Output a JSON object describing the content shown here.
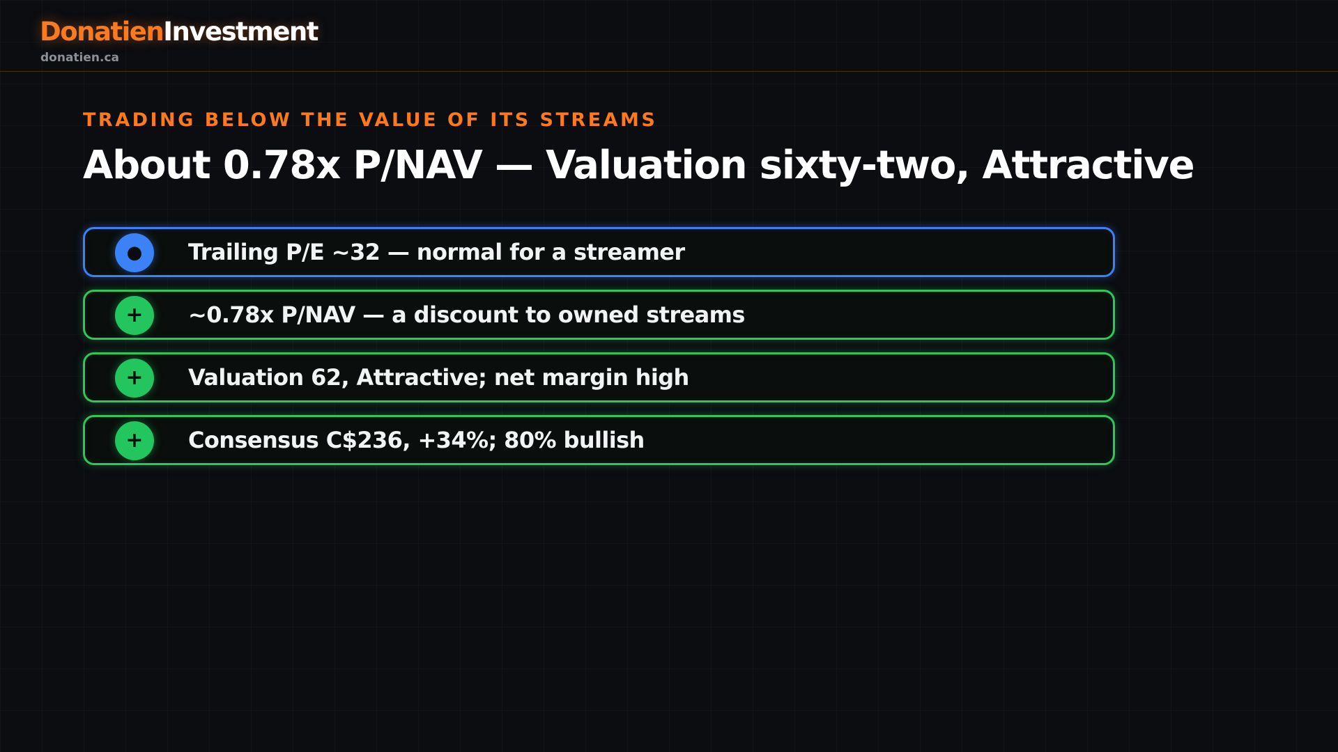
{
  "brand": {
    "name_first": "Donatien",
    "name_second": "Investment",
    "domain": "donatien.ca"
  },
  "colors": {
    "accent": "#f97a1f",
    "positive": "#22c55e",
    "neutral": "#3b82f6",
    "background": "#0b0d11"
  },
  "slide": {
    "kicker": "TRADING BELOW THE VALUE OF ITS STREAMS",
    "title": "About 0.78x P/NAV — Valuation sixty-two, Attractive",
    "points": [
      {
        "type": "neutral",
        "symbol": "●",
        "icon": "dot-icon",
        "text": "Trailing P/E ~32 — normal for a streamer"
      },
      {
        "type": "positive",
        "symbol": "+",
        "icon": "plus-icon",
        "text": "~0.78x P/NAV — a discount to owned streams"
      },
      {
        "type": "positive",
        "symbol": "+",
        "icon": "plus-icon",
        "text": "Valuation 62, Attractive; net margin high"
      },
      {
        "type": "positive",
        "symbol": "+",
        "icon": "plus-icon",
        "text": "Consensus C$236, +34%; 80% bullish"
      }
    ]
  }
}
